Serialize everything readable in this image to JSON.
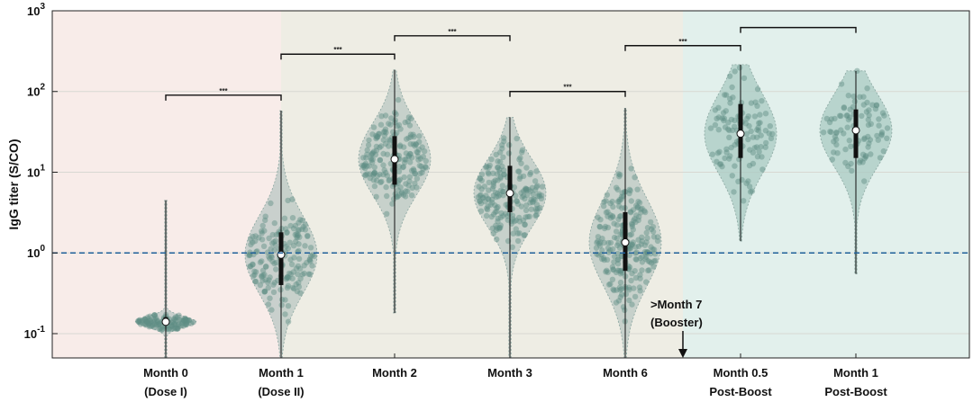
{
  "chart_data": {
    "type": "violin",
    "yscale": "log",
    "ylim": [
      0.05,
      1000
    ],
    "ylabel": "IgG titer (S/CO)",
    "yticks": [
      {
        "value": 0.1,
        "base": "10",
        "exp": "-1"
      },
      {
        "value": 1,
        "base": "10",
        "exp": "0"
      },
      {
        "value": 10,
        "base": "10",
        "exp": "1"
      },
      {
        "value": 100,
        "base": "10",
        "exp": "2"
      },
      {
        "value": 1000,
        "base": "10",
        "exp": "3"
      }
    ],
    "threshold": 1,
    "categories": [
      {
        "line1": "Month 0",
        "line2": "(Dose I)",
        "median": 0.14,
        "q1": 0.13,
        "q3": 0.16,
        "min": 0.05,
        "max": 4.5,
        "n": 120
      },
      {
        "line1": "Month 1",
        "line2": "(Dose II)",
        "median": 0.95,
        "q1": 0.4,
        "q3": 1.8,
        "min": 0.05,
        "max": 58,
        "n": 180
      },
      {
        "line1": "Month 2",
        "line2": "",
        "median": 14.5,
        "q1": 7,
        "q3": 28,
        "min": 0.18,
        "max": 185,
        "n": 200
      },
      {
        "line1": "Month 3",
        "line2": "",
        "median": 5.5,
        "q1": 3.2,
        "q3": 12,
        "min": 0.05,
        "max": 48,
        "n": 200
      },
      {
        "line1": "Month 6",
        "line2": "",
        "median": 1.35,
        "q1": 0.6,
        "q3": 3.2,
        "min": 0.05,
        "max": 62,
        "n": 240
      },
      {
        "line1": "Month 0.5",
        "line2": "Post-Boost",
        "median": 30,
        "q1": 15,
        "q3": 70,
        "min": 1.4,
        "max": 215,
        "n": 110
      },
      {
        "line1": "Month 1",
        "line2": "Post-Boost",
        "median": 33,
        "q1": 15,
        "q3": 60,
        "min": 0.55,
        "max": 180,
        "n": 90
      }
    ],
    "significance": [
      {
        "from": 0,
        "to": 1,
        "y": 90,
        "label": "***"
      },
      {
        "from": 1,
        "to": 2,
        "y": 290,
        "label": "***"
      },
      {
        "from": 2,
        "to": 3,
        "y": 490,
        "label": "***"
      },
      {
        "from": 3,
        "to": 4,
        "y": 100,
        "label": "***"
      },
      {
        "from": 4,
        "to": 5,
        "y": 370,
        "label": "***"
      },
      {
        "from": 5,
        "to": 6,
        "y": 620,
        "label": ""
      }
    ],
    "annotation": {
      "line1": ">Month 7",
      "line2": "(Booster)"
    },
    "colors": {
      "dose_region": "#f8ece9",
      "mid_region": "#eeede4",
      "boost_region": "#e2f0ec",
      "violin_fill": "#b9c7c3",
      "violin_fill_boost": "#a9cbc3",
      "point": "#5f8f86",
      "threshold": "#1f5f99"
    }
  }
}
